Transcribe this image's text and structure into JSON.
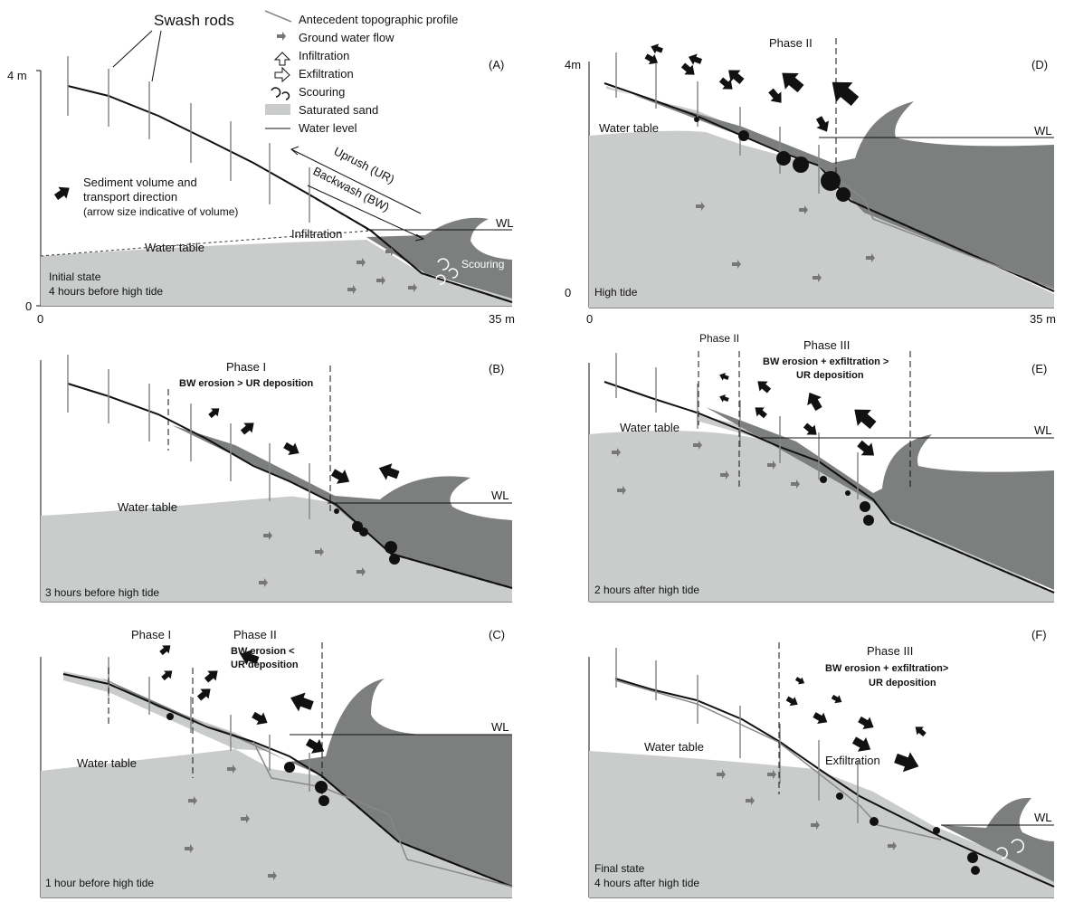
{
  "legend": {
    "swash_rods": "Swash rods",
    "antecedent": "Antecedent topographic profile",
    "groundwater": "Ground water flow",
    "infiltration": "Infiltration",
    "exfiltration": "Exfiltration",
    "scouring": "Scouring",
    "saturated": "Saturated sand",
    "water_level": "Water level",
    "sediment_1": "Sediment volume and",
    "sediment_2": "transport direction",
    "sediment_3": "(arrow size indicative of volume)"
  },
  "axes": {
    "top_left": "4 m",
    "top_right": "4m",
    "zero": "0",
    "x_end": "35 m"
  },
  "panels": {
    "A": {
      "letter": "(A)",
      "state_1": "Initial state",
      "state_2": "4 hours before high tide",
      "water_table": "Water table",
      "wl": "WL",
      "uprush": "Uprush (UR)",
      "backwash": "Backwash (BW)",
      "infiltration": "Infiltration",
      "scouring": "Scouring"
    },
    "B": {
      "letter": "(B)",
      "state": "3 hours before high tide",
      "phase": "Phase I",
      "process": "BW erosion > UR deposition",
      "water_table": "Water table",
      "wl": "WL"
    },
    "C": {
      "letter": "(C)",
      "state": "1 hour before high tide",
      "phase_1": "Phase I",
      "phase_2": "Phase II",
      "process_1": "BW erosion <",
      "process_2": "UR deposition",
      "water_table": "Water table",
      "wl": "WL"
    },
    "D": {
      "letter": "(D)",
      "state": "High tide",
      "phase": "Phase II",
      "water_table": "Water table",
      "wl": "WL"
    },
    "E": {
      "letter": "(E)",
      "state": "2 hours after high tide",
      "phase_2": "Phase II",
      "phase_3": "Phase III",
      "process_1": "BW erosion + exfiltration >",
      "process_2": "UR deposition",
      "water_table": "Water table",
      "wl": "WL"
    },
    "F": {
      "letter": "(F)",
      "state_1": "Final state",
      "state_2": "4 hours after high tide",
      "phase": "Phase III",
      "process_1": "BW erosion + exfiltration>",
      "process_2": "UR deposition",
      "water_table": "Water table",
      "exfiltration": "Exfiltration",
      "wl": "WL"
    }
  },
  "colors": {
    "saturated_sand": "#c9cccb",
    "wave": "#7c7f7e",
    "profile": "#111111",
    "antecedent": "#8a8a8a"
  }
}
